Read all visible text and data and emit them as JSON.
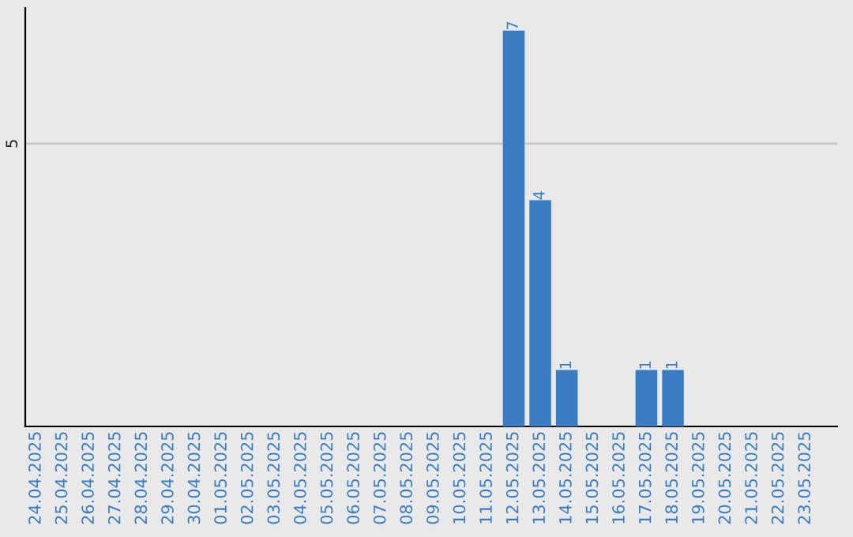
{
  "chart_data": {
    "type": "bar",
    "categories": [
      "24.04.2025",
      "25.04.2025",
      "26.04.2025",
      "27.04.2025",
      "28.04.2025",
      "29.04.2025",
      "30.04.2025",
      "01.05.2025",
      "02.05.2025",
      "03.05.2025",
      "04.05.2025",
      "05.05.2025",
      "06.05.2025",
      "07.05.2025",
      "08.05.2025",
      "09.05.2025",
      "10.05.2025",
      "11.05.2025",
      "12.05.2025",
      "13.05.2025",
      "14.05.2025",
      "15.05.2025",
      "16.05.2025",
      "17.05.2025",
      "18.05.2025",
      "19.05.2025",
      "20.05.2025",
      "21.05.2025",
      "22.05.2025",
      "23.05.2025"
    ],
    "values": [
      null,
      null,
      null,
      null,
      null,
      null,
      null,
      null,
      null,
      null,
      null,
      null,
      null,
      null,
      null,
      null,
      null,
      null,
      7,
      4,
      1,
      null,
      null,
      1,
      1,
      null,
      null,
      null,
      null,
      null
    ],
    "value_labels": [
      null,
      null,
      null,
      null,
      null,
      null,
      null,
      null,
      null,
      null,
      null,
      null,
      null,
      null,
      null,
      null,
      null,
      null,
      "7",
      "4",
      "1",
      null,
      null,
      "1",
      "1",
      null,
      null,
      null,
      null,
      null
    ],
    "color": "#3a7dc2",
    "ylim": [
      0,
      7.4
    ],
    "ref_lines": [
      {
        "axis": "y",
        "value": 5,
        "label": "5",
        "color": "#c8c8c8"
      }
    ]
  }
}
